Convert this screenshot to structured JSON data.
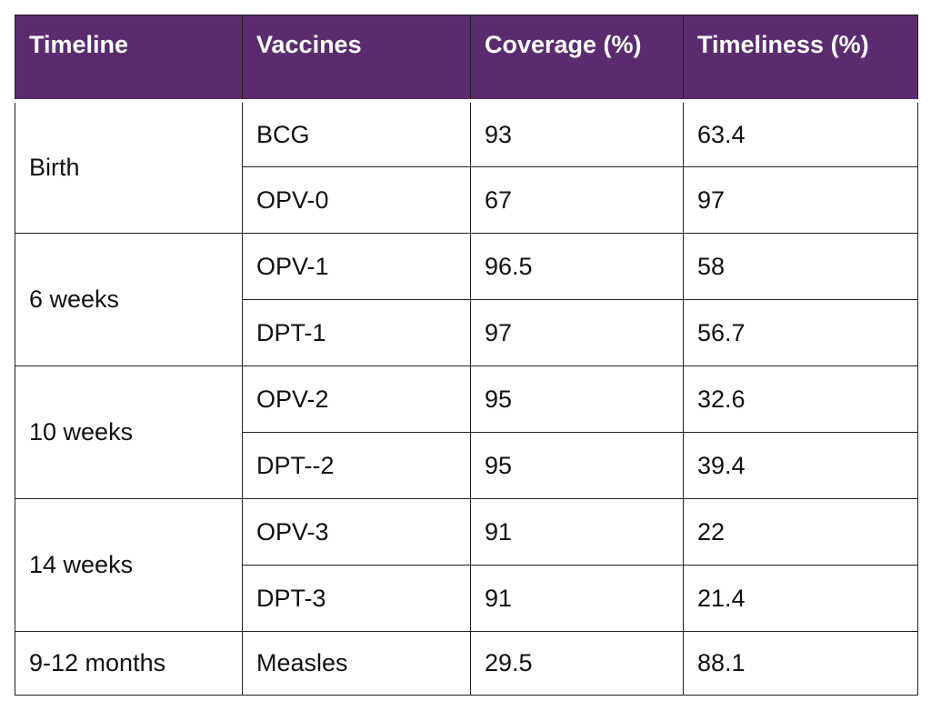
{
  "table": {
    "headers": [
      "Timeline",
      "Vaccines",
      "Coverage (%)",
      "Timeliness (%)"
    ],
    "groups": [
      {
        "timeline": "Birth",
        "rows": [
          {
            "vaccine": "BCG",
            "coverage": "93",
            "timeliness": "63.4"
          },
          {
            "vaccine": "OPV-0",
            "coverage": "67",
            "timeliness": "97"
          }
        ]
      },
      {
        "timeline": "6 weeks",
        "rows": [
          {
            "vaccine": "OPV-1",
            "coverage": "96.5",
            "timeliness": "58"
          },
          {
            "vaccine": "DPT-1",
            "coverage": "97",
            "timeliness": "56.7"
          }
        ]
      },
      {
        "timeline": "10 weeks",
        "rows": [
          {
            "vaccine": "OPV-2",
            "coverage": "95",
            "timeliness": "32.6"
          },
          {
            "vaccine": "DPT--2",
            "coverage": "95",
            "timeliness": "39.4"
          }
        ]
      },
      {
        "timeline": "14 weeks",
        "rows": [
          {
            "vaccine": "OPV-3",
            "coverage": "91",
            "timeliness": "22"
          },
          {
            "vaccine": "DPT-3",
            "coverage": "91",
            "timeliness": "21.4"
          }
        ]
      },
      {
        "timeline": "9-12 months",
        "rows": [
          {
            "vaccine": "Measles",
            "coverage": "29.5",
            "timeliness": "88.1"
          }
        ]
      }
    ],
    "colors": {
      "header_bg": "#5a2c6f",
      "header_text": "#ffffff",
      "border": "#222222",
      "body_text": "#111111"
    }
  }
}
